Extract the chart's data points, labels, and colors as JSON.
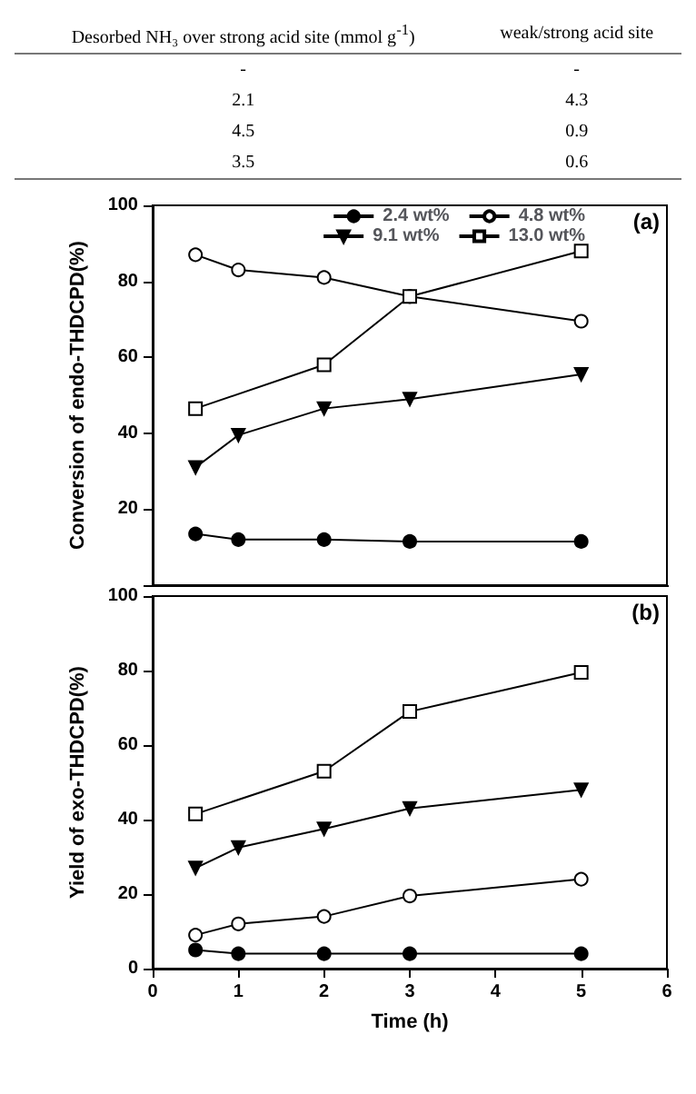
{
  "chart_data": [
    {
      "type": "other",
      "annotations": [
        "Desorbed NH₃ over strong acid site (mmol g$^{-1}$)",
        "weak/strong acid site",
        "-",
        "-",
        "2.1",
        "4.3",
        "4.5",
        "0.9",
        "3.5",
        "0.6"
      ]
    },
    {
      "type": "line",
      "ylabel": "Conversion of endo-THDCPD(%)",
      "annotations": [
        "(a)"
      ],
      "xlim": [
        0,
        6
      ],
      "xticks": [
        0,
        1,
        2,
        3,
        4,
        5,
        6
      ],
      "ylim": [
        0,
        100
      ],
      "yticks": [
        {
          "value": 0,
          "label": null
        },
        20,
        40,
        60,
        80,
        100
      ],
      "tick_labels": "y",
      "legend": "top right",
      "series": [
        {
          "name": "2.4 wt%",
          "color": "#000000",
          "marker": "circle",
          "x": [
            0.5,
            1,
            2,
            3,
            5
          ],
          "values": [
            13.5,
            12,
            12,
            11.5,
            11.5
          ]
        },
        {
          "name": "4.8 wt%",
          "color": "#000000",
          "marker": "circle",
          "x": [
            0.5,
            1,
            2,
            3,
            5
          ],
          "values": [
            87,
            83,
            81,
            76,
            69.5
          ]
        },
        {
          "name": "9.1 wt%",
          "color": "#000000",
          "marker": "triangle",
          "x": [
            0.5,
            1,
            2,
            3,
            5
          ],
          "values": [
            31,
            39.5,
            46.5,
            49,
            55.5
          ]
        },
        {
          "name": "13.0 wt%",
          "color": "#000000",
          "marker": "square",
          "x": [
            0.5,
            2,
            3,
            5
          ],
          "values": [
            46.5,
            58,
            76,
            88
          ]
        }
      ]
    },
    {
      "type": "line",
      "ylabel": "Yield of exo-THDCPD(%)",
      "xlabel": "Time (h)",
      "annotations": [
        "(b)"
      ],
      "xlim": [
        0,
        6
      ],
      "xticks": [
        0,
        1,
        2,
        3,
        4,
        5,
        6
      ],
      "ylim": [
        0,
        100
      ],
      "yticks": [
        0,
        20,
        40,
        60,
        80,
        100
      ],
      "series": [
        {
          "color": "#000000",
          "marker": "circle",
          "x": [
            0.5,
            1,
            2,
            3,
            5
          ],
          "values": [
            5,
            4,
            4,
            4,
            4
          ]
        },
        {
          "color": "#000000",
          "marker": "circle",
          "x": [
            0.5,
            1,
            2,
            3,
            5
          ],
          "values": [
            9,
            12,
            14,
            19.5,
            24
          ]
        },
        {
          "color": "#000000",
          "marker": "triangle",
          "x": [
            0.5,
            1,
            2,
            3,
            5
          ],
          "values": [
            27,
            32.5,
            37.5,
            43,
            48
          ]
        },
        {
          "color": "#000000",
          "marker": "square",
          "x": [
            0.5,
            2,
            3,
            5
          ],
          "values": [
            41.5,
            53,
            69,
            79.5
          ]
        }
      ]
    }
  ]
}
